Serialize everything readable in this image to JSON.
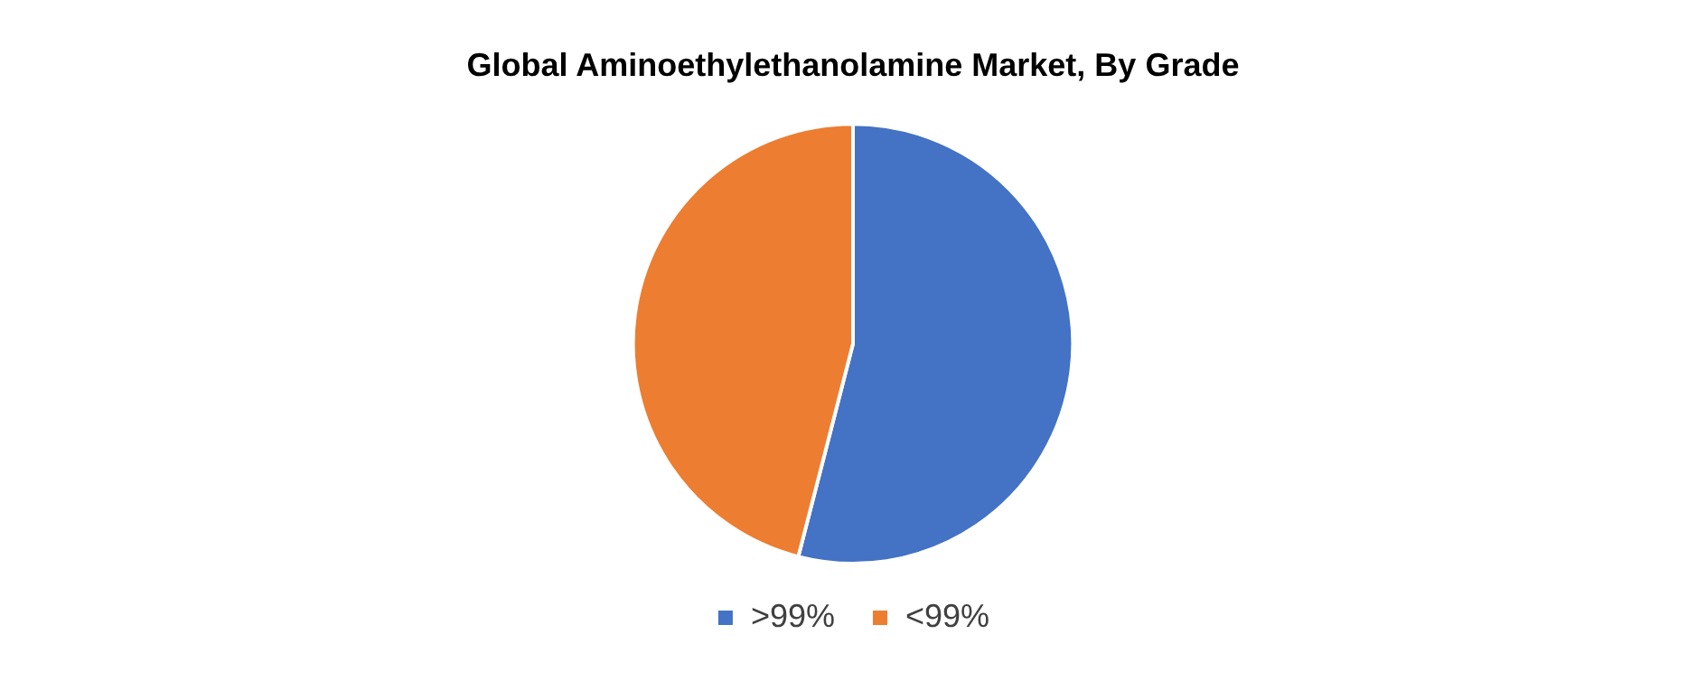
{
  "chart_data": {
    "type": "pie",
    "title": "Global Aminoethylethanolamine Market, By Grade",
    "categories": [
      ">99%",
      "<99%"
    ],
    "values": [
      54,
      46
    ],
    "colors": [
      "#4472c4",
      "#ed7d31"
    ],
    "legend": "bottom"
  }
}
